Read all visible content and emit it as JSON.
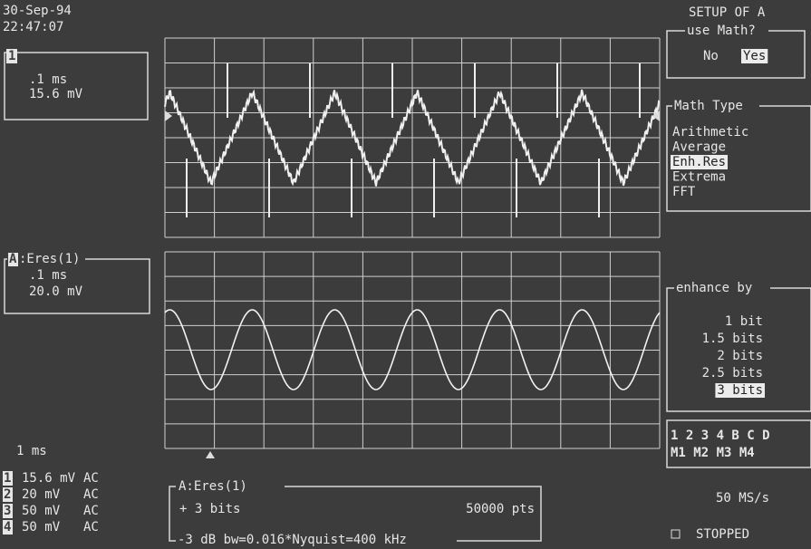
{
  "header": {
    "date": "30-Sep-94",
    "time": "22:47:07"
  },
  "traces": [
    {
      "id": "1",
      "timebase": ".1 ms",
      "scale": "15.6 mV"
    },
    {
      "id": "A",
      "name": ":Eres(1)",
      "timebase": ".1 ms",
      "scale": "20.0 mV"
    }
  ],
  "timebase": "1 ms",
  "channels": [
    {
      "id": "1",
      "scale": "15.6 mV",
      "coupling": "AC"
    },
    {
      "id": "2",
      "scale": "20 mV",
      "coupling": "AC"
    },
    {
      "id": "3",
      "scale": "50 mV",
      "coupling": "AC"
    },
    {
      "id": "4",
      "scale": "50 mV",
      "coupling": "AC"
    }
  ],
  "math_info": {
    "title": "A:Eres(1)",
    "bits": "+   3 bits",
    "points": "50000 pts",
    "bandwidth": "-3 dB bw=0.016*Nyquist=400 kHz"
  },
  "menu": {
    "title": "SETUP OF A",
    "use_math": {
      "label": "use Math?",
      "options": [
        "No",
        "Yes"
      ],
      "selected": 1
    },
    "math_type": {
      "label": "Math Type",
      "options": [
        "Arithmetic",
        "Average",
        "Enh.Res",
        "Extrema",
        "FFT"
      ],
      "selected": 2
    },
    "enhance_by": {
      "label": "enhance by",
      "options": [
        "1 bit",
        "1.5 bits",
        "2 bits",
        "2.5 bits",
        "3 bits"
      ],
      "selected": 4
    },
    "sources": {
      "row1": "1 2 3 4 B C D",
      "row2": "M1 M2 M3 M4"
    }
  },
  "status": {
    "sample_rate": "50 MS/s",
    "state": "STOPPED"
  }
}
